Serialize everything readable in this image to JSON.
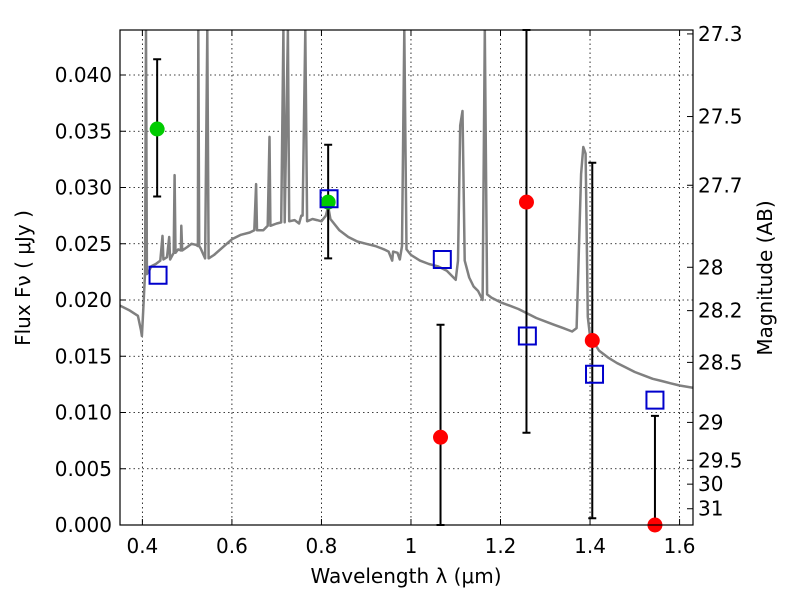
{
  "chart_data": {
    "type": "scatter",
    "xlabel": "Wavelength  λ (μm)",
    "ylabel": "Flux  Fν  ( μJy )",
    "ylabel_right": "Magnitude (AB)",
    "xlim": [
      0.35,
      1.63
    ],
    "ylim": [
      0.0,
      0.044
    ],
    "grid": true,
    "x_ticks": [
      0.4,
      0.6,
      0.8,
      1.0,
      1.2,
      1.4,
      1.6
    ],
    "x_tick_labels": [
      "0.4",
      "0.6",
      "0.8",
      "1",
      "1.2",
      "1.4",
      "1.6"
    ],
    "y_ticks": [
      0.0,
      0.005,
      0.01,
      0.015,
      0.02,
      0.025,
      0.03,
      0.035,
      0.04
    ],
    "y_tick_labels": [
      "0.000",
      "0.005",
      "0.010",
      "0.015",
      "0.020",
      "0.025",
      "0.030",
      "0.035",
      "0.040"
    ],
    "mag_ticks": [
      27.3,
      27.5,
      27.7,
      28,
      28.2,
      28.5,
      29,
      29.5,
      30,
      31
    ],
    "mag_tick_labels": [
      "27.3",
      "27.5",
      "27.7",
      "28",
      "28.2",
      "28.5",
      "29",
      "29.5",
      "30",
      "31"
    ],
    "series": [
      {
        "marker": "circle",
        "color": "#00cc00",
        "points": [
          {
            "x": 0.433,
            "y": 0.0352,
            "err_lo": 0.0292,
            "err_hi": 0.0414
          },
          {
            "x": 0.815,
            "y": 0.0287,
            "err_lo": 0.0237,
            "err_hi": 0.0338
          }
        ]
      },
      {
        "marker": "circle",
        "color": "#ff0000",
        "points": [
          {
            "x": 1.066,
            "y": 0.0078,
            "err_lo": 0.0,
            "err_hi": 0.0178
          },
          {
            "x": 1.258,
            "y": 0.0287,
            "err_lo": 0.0082,
            "err_hi": 0.044
          },
          {
            "x": 1.405,
            "y": 0.0164,
            "err_lo": 0.0006,
            "err_hi": 0.0322
          },
          {
            "x": 1.545,
            "y": 0.0,
            "err_lo": 0.0,
            "err_hi": 0.0097
          }
        ]
      },
      {
        "marker": "open-square",
        "color": "#0000cc",
        "points": [
          {
            "x": 0.435,
            "y": 0.0222
          },
          {
            "x": 0.817,
            "y": 0.029
          },
          {
            "x": 1.07,
            "y": 0.0236
          },
          {
            "x": 1.26,
            "y": 0.0168
          },
          {
            "x": 1.41,
            "y": 0.0134
          },
          {
            "x": 1.545,
            "y": 0.0111
          }
        ]
      },
      {
        "marker": "line",
        "color": "#808080",
        "points": [
          [
            0.35,
            0.0195
          ],
          [
            0.37,
            0.0191
          ],
          [
            0.39,
            0.0186
          ],
          [
            0.397,
            0.0173
          ],
          [
            0.399,
            0.0168
          ],
          [
            0.401,
            0.0183
          ],
          [
            0.406,
            0.0225
          ],
          [
            0.408,
            0.046
          ],
          [
            0.41,
            0.0223
          ],
          [
            0.415,
            0.0226
          ],
          [
            0.42,
            0.023
          ],
          [
            0.43,
            0.0232
          ],
          [
            0.44,
            0.0235
          ],
          [
            0.445,
            0.0257
          ],
          [
            0.447,
            0.0236
          ],
          [
            0.455,
            0.0238
          ],
          [
            0.46,
            0.0256
          ],
          [
            0.462,
            0.0236
          ],
          [
            0.47,
            0.0242
          ],
          [
            0.472,
            0.0311
          ],
          [
            0.474,
            0.0242
          ],
          [
            0.48,
            0.0245
          ],
          [
            0.486,
            0.0244
          ],
          [
            0.487,
            0.0266
          ],
          [
            0.489,
            0.0244
          ],
          [
            0.5,
            0.0247
          ],
          [
            0.51,
            0.025
          ],
          [
            0.52,
            0.0249
          ],
          [
            0.524,
            0.0248
          ],
          [
            0.525,
            0.046
          ],
          [
            0.527,
            0.0248
          ],
          [
            0.53,
            0.0246
          ],
          [
            0.54,
            0.0237
          ],
          [
            0.545,
            0.046
          ],
          [
            0.548,
            0.0237
          ],
          [
            0.56,
            0.024
          ],
          [
            0.58,
            0.0247
          ],
          [
            0.6,
            0.0254
          ],
          [
            0.62,
            0.0258
          ],
          [
            0.64,
            0.026
          ],
          [
            0.65,
            0.0262
          ],
          [
            0.654,
            0.0303
          ],
          [
            0.656,
            0.0262
          ],
          [
            0.67,
            0.0262
          ],
          [
            0.68,
            0.0266
          ],
          [
            0.684,
            0.0345
          ],
          [
            0.686,
            0.0266
          ],
          [
            0.7,
            0.0268
          ],
          [
            0.71,
            0.0269
          ],
          [
            0.715,
            0.046
          ],
          [
            0.718,
            0.0269
          ],
          [
            0.725,
            0.046
          ],
          [
            0.728,
            0.027
          ],
          [
            0.74,
            0.0271
          ],
          [
            0.75,
            0.0268
          ],
          [
            0.755,
            0.0275
          ],
          [
            0.758,
            0.0275
          ],
          [
            0.764,
            0.046
          ],
          [
            0.768,
            0.027
          ],
          [
            0.78,
            0.0272
          ],
          [
            0.79,
            0.0271
          ],
          [
            0.8,
            0.027
          ],
          [
            0.81,
            0.0275
          ],
          [
            0.815,
            0.0283
          ],
          [
            0.82,
            0.0272
          ],
          [
            0.84,
            0.0262
          ],
          [
            0.86,
            0.0256
          ],
          [
            0.88,
            0.0252
          ],
          [
            0.9,
            0.025
          ],
          [
            0.92,
            0.0248
          ],
          [
            0.94,
            0.0245
          ],
          [
            0.95,
            0.0243
          ],
          [
            0.958,
            0.0235
          ],
          [
            0.96,
            0.0243
          ],
          [
            0.97,
            0.0242
          ],
          [
            0.975,
            0.0236
          ],
          [
            0.98,
            0.0248
          ],
          [
            0.985,
            0.046
          ],
          [
            0.99,
            0.0245
          ],
          [
            1.0,
            0.024
          ],
          [
            1.02,
            0.0235
          ],
          [
            1.04,
            0.0232
          ],
          [
            1.06,
            0.023
          ],
          [
            1.08,
            0.0226
          ],
          [
            1.1,
            0.0218
          ],
          [
            1.105,
            0.0235
          ],
          [
            1.11,
            0.0355
          ],
          [
            1.115,
            0.0368
          ],
          [
            1.12,
            0.0235
          ],
          [
            1.13,
            0.022
          ],
          [
            1.14,
            0.0212
          ],
          [
            1.15,
            0.0208
          ],
          [
            1.16,
            0.02
          ],
          [
            1.165,
            0.046
          ],
          [
            1.17,
            0.0205
          ],
          [
            1.18,
            0.0202
          ],
          [
            1.2,
            0.0198
          ],
          [
            1.22,
            0.0195
          ],
          [
            1.24,
            0.0192
          ],
          [
            1.26,
            0.0188
          ],
          [
            1.28,
            0.0184
          ],
          [
            1.3,
            0.0181
          ],
          [
            1.32,
            0.0178
          ],
          [
            1.34,
            0.0175
          ],
          [
            1.36,
            0.0172
          ],
          [
            1.37,
            0.0175
          ],
          [
            1.38,
            0.0312
          ],
          [
            1.385,
            0.0336
          ],
          [
            1.39,
            0.033
          ],
          [
            1.395,
            0.0185
          ],
          [
            1.4,
            0.0168
          ],
          [
            1.42,
            0.0155
          ],
          [
            1.44,
            0.0149
          ],
          [
            1.46,
            0.0144
          ],
          [
            1.48,
            0.014
          ],
          [
            1.5,
            0.0136
          ],
          [
            1.52,
            0.0133
          ],
          [
            1.54,
            0.013
          ],
          [
            1.56,
            0.0128
          ],
          [
            1.58,
            0.0126
          ],
          [
            1.6,
            0.0124
          ],
          [
            1.63,
            0.0122
          ]
        ]
      }
    ]
  }
}
